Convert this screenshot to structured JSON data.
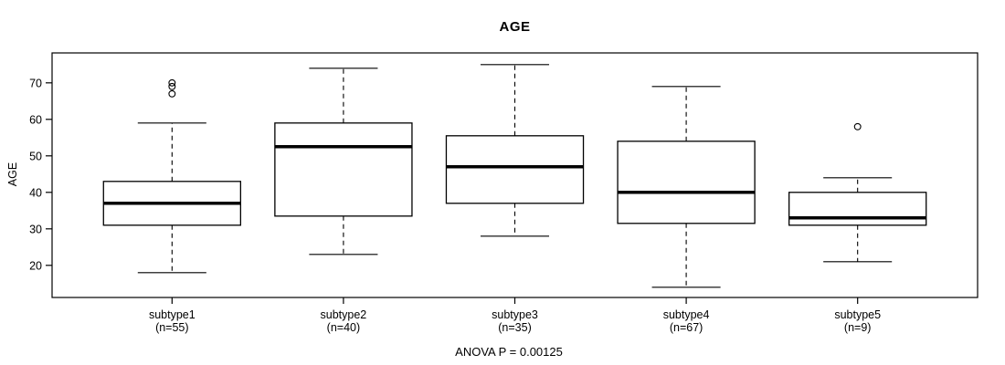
{
  "figure": {
    "background": "#ffffff",
    "line_color": "#000000",
    "box_fill": "#ffffff"
  },
  "chart_data": {
    "type": "boxplot",
    "title": "AGE",
    "xlabel": "",
    "ylabel": "AGE",
    "annotation": "ANOVA P = 0.00125",
    "yticks": [
      20,
      30,
      40,
      50,
      60,
      70
    ],
    "ylim": [
      11.2,
      78.2
    ],
    "grid": "off",
    "categories": [
      "subtype1",
      "subtype2",
      "subtype3",
      "subtype4",
      "subtype5"
    ],
    "category_sublabels": [
      "(n=55)",
      "(n=40)",
      "(n=35)",
      "(n=67)",
      "(n=9)"
    ],
    "series": [
      {
        "name": "subtype1",
        "lower_whisker": 18,
        "q1": 31,
        "median": 37,
        "q3": 43,
        "upper_whisker": 59,
        "outliers": [
          67,
          69,
          70
        ]
      },
      {
        "name": "subtype2",
        "lower_whisker": 23,
        "q1": 33.5,
        "median": 52.5,
        "q3": 59,
        "upper_whisker": 74,
        "outliers": []
      },
      {
        "name": "subtype3",
        "lower_whisker": 28,
        "q1": 37,
        "median": 47,
        "q3": 55.5,
        "upper_whisker": 75,
        "outliers": []
      },
      {
        "name": "subtype4",
        "lower_whisker": 14,
        "q1": 31.5,
        "median": 40,
        "q3": 54,
        "upper_whisker": 69,
        "outliers": []
      },
      {
        "name": "subtype5",
        "lower_whisker": 21,
        "q1": 31,
        "median": 33,
        "q3": 40,
        "upper_whisker": 44,
        "outliers": [
          58
        ]
      }
    ]
  }
}
